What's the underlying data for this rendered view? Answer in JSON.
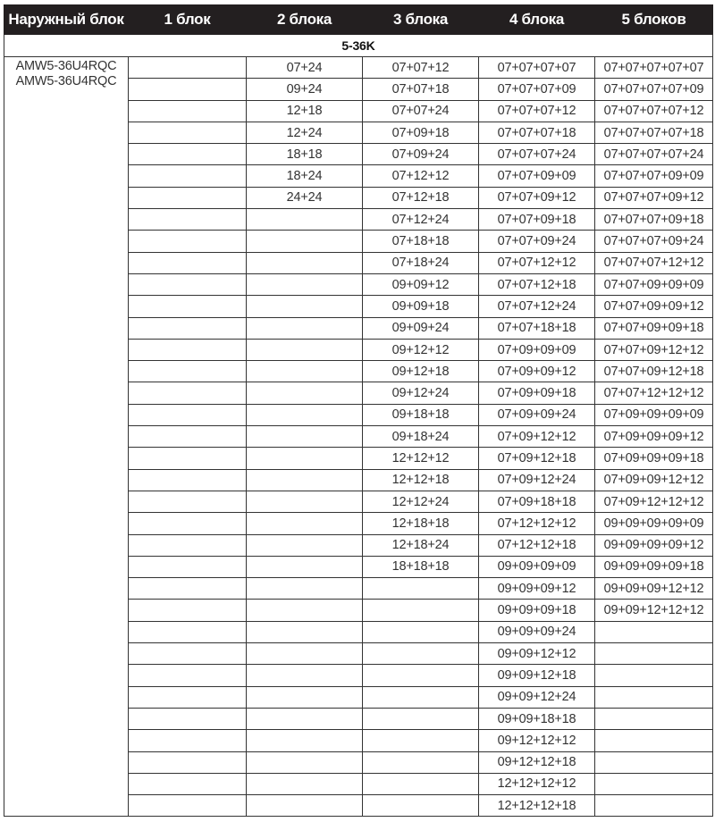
{
  "headers": [
    "Наружный блок",
    "1 блок",
    "2 блока",
    "3 блока",
    "4 блока",
    "5 блоков"
  ],
  "group_label": "5-36K",
  "models": [
    "AMW5-36U4RQC",
    "AMW5-36U4RQC"
  ],
  "one": [],
  "two": [
    "07+24",
    "09+24",
    "12+18",
    "12+24",
    "18+18",
    "18+24",
    "24+24"
  ],
  "three": [
    "07+07+12",
    "07+07+18",
    "07+07+24",
    "07+09+18",
    "07+09+24",
    "07+12+12",
    "07+12+18",
    "07+12+24",
    "07+18+18",
    "07+18+24",
    "09+09+12",
    "09+09+18",
    "09+09+24",
    "09+12+12",
    "09+12+18",
    "09+12+24",
    "09+18+18",
    "09+18+24",
    "12+12+12",
    "12+12+18",
    "12+12+24",
    "12+18+18",
    "12+18+24",
    "18+18+18"
  ],
  "four": [
    "07+07+07+07",
    "07+07+07+09",
    "07+07+07+12",
    "07+07+07+18",
    "07+07+07+24",
    "07+07+09+09",
    "07+07+09+12",
    "07+07+09+18",
    "07+07+09+24",
    "07+07+12+12",
    "07+07+12+18",
    "07+07+12+24",
    "07+07+18+18",
    "07+09+09+09",
    "07+09+09+12",
    "07+09+09+18",
    "07+09+09+24",
    "07+09+12+12",
    "07+09+12+18",
    "07+09+12+24",
    "07+09+18+18",
    "07+12+12+12",
    "07+12+12+18",
    "09+09+09+09",
    "09+09+09+12",
    "09+09+09+18",
    "09+09+09+24",
    "09+09+12+12",
    "09+09+12+18",
    "09+09+12+24",
    "09+09+18+18",
    "09+12+12+12",
    "09+12+12+18",
    "12+12+12+12",
    "12+12+12+18"
  ],
  "five": [
    "07+07+07+07+07",
    "07+07+07+07+09",
    "07+07+07+07+12",
    "07+07+07+07+18",
    "07+07+07+07+24",
    "07+07+07+09+09",
    "07+07+07+09+12",
    "07+07+07+09+18",
    "07+07+07+09+24",
    "07+07+07+12+12",
    "07+07+09+09+09",
    "07+07+09+09+12",
    "07+07+09+09+18",
    "07+07+09+12+12",
    "07+07+09+12+18",
    "07+07+12+12+12",
    "07+09+09+09+09",
    "07+09+09+09+12",
    "07+09+09+09+18",
    "07+09+09+12+12",
    "07+09+12+12+12",
    "09+09+09+09+09",
    "09+09+09+09+12",
    "09+09+09+09+18",
    "09+09+09+12+12",
    "09+09+12+12+12"
  ]
}
